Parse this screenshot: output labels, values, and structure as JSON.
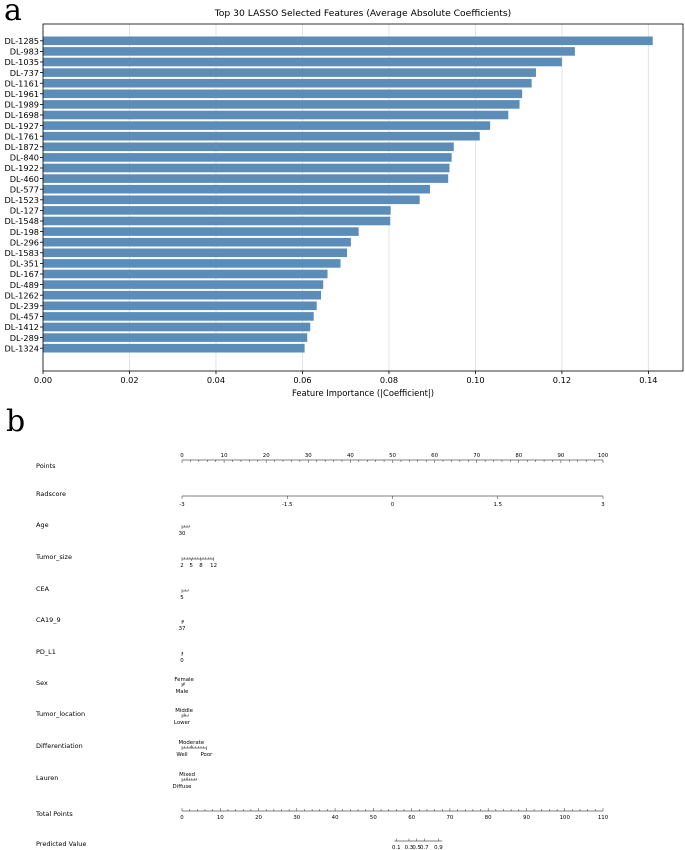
{
  "panel_labels": {
    "a": "a",
    "b": "b"
  },
  "chart_data": [
    {
      "type": "bar",
      "orientation": "horizontal",
      "title": "Top 30 LASSO Selected Features (Average Absolute Coefficients)",
      "xlabel": "Feature Importance (|Coefficient|)",
      "ylabel": "",
      "xlim": [
        0,
        0.148
      ],
      "xticks": [
        0.0,
        0.02,
        0.04,
        0.06,
        0.08,
        0.1,
        0.12,
        0.14
      ],
      "xtick_labels": [
        "0.00",
        "0.02",
        "0.04",
        "0.06",
        "0.08",
        "0.10",
        "0.12",
        "0.14"
      ],
      "grid": "vertical",
      "bar_color": "#5b8db8",
      "categories": [
        "DL-1285",
        "DL-983",
        "DL-1035",
        "DL-737",
        "DL-1161",
        "DL-1961",
        "DL-1989",
        "DL-1698",
        "DL-1927",
        "DL-1761",
        "DL-1872",
        "DL-840",
        "DL-1922",
        "DL-460",
        "DL-577",
        "DL-1523",
        "DL-127",
        "DL-1548",
        "DL-198",
        "DL-296",
        "DL-1583",
        "DL-351",
        "DL-167",
        "DL-489",
        "DL-1262",
        "DL-239",
        "DL-457",
        "DL-1412",
        "DL-289",
        "DL-1324"
      ],
      "values": [
        0.141,
        0.123,
        0.12,
        0.114,
        0.113,
        0.1108,
        0.1102,
        0.1076,
        0.1034,
        0.101,
        0.095,
        0.0945,
        0.094,
        0.0937,
        0.0895,
        0.0871,
        0.0804,
        0.0803,
        0.073,
        0.0712,
        0.0703,
        0.0688,
        0.0658,
        0.0648,
        0.0643,
        0.0633,
        0.0626,
        0.0618,
        0.0611,
        0.0605
      ]
    },
    {
      "type": "nomogram",
      "title": "",
      "rows": [
        {
          "label": "Points",
          "axis": "points",
          "ticks": [
            {
              "v": "0",
              "p": 0
            },
            {
              "v": "10",
              "p": 10
            },
            {
              "v": "20",
              "p": 20
            },
            {
              "v": "30",
              "p": 30
            },
            {
              "v": "40",
              "p": 40
            },
            {
              "v": "50",
              "p": 50
            },
            {
              "v": "60",
              "p": 60
            },
            {
              "v": "70",
              "p": 70
            },
            {
              "v": "80",
              "p": 80
            },
            {
              "v": "90",
              "p": 90
            },
            {
              "v": "100",
              "p": 100
            }
          ]
        },
        {
          "label": "Radscore",
          "ticks": [
            {
              "v": "-3",
              "p": 0
            },
            {
              "v": "-1.5",
              "p": 25
            },
            {
              "v": "0",
              "p": 50
            },
            {
              "v": "1.5",
              "p": 75
            },
            {
              "v": "3",
              "p": 100
            }
          ],
          "labels_side": "above"
        },
        {
          "label": "Age",
          "ticks": [
            {
              "v": "30",
              "p": 0
            }
          ],
          "span": [
            0,
            1.8
          ],
          "labels_side": "below"
        },
        {
          "label": "Tumor_size",
          "ticks": [
            {
              "v": "2",
              "p": 0
            },
            {
              "v": "5",
              "p": 2.2
            },
            {
              "v": "8",
              "p": 4.5
            },
            {
              "v": "12",
              "p": 7.5
            }
          ],
          "labels_side": "below"
        },
        {
          "label": "CEA",
          "ticks": [
            {
              "v": "5",
              "p": 0
            }
          ],
          "span": [
            0,
            1.5
          ],
          "labels_side": "below"
        },
        {
          "label": "CA19_9",
          "ticks": [
            {
              "v": "37",
              "p": 0
            }
          ],
          "span": [
            0,
            0.4
          ],
          "labels_side": "below"
        },
        {
          "label": "PD_L1",
          "ticks": [
            {
              "v": "0",
              "p": 0
            }
          ],
          "span": [
            0,
            0.2
          ],
          "labels_side": "below"
        },
        {
          "label": "Sex",
          "ticks": [
            {
              "v": "Female",
              "p": 0.5,
              "side": "above"
            },
            {
              "v": "Male",
              "p": 0,
              "side": "below"
            }
          ],
          "span": [
            0,
            0.5
          ]
        },
        {
          "label": "Tumor_location",
          "ticks": [
            {
              "v": "Middle",
              "p": 0.5,
              "side": "above"
            },
            {
              "v": "Lower",
              "p": 0,
              "side": "below"
            }
          ],
          "span": [
            0,
            1.5
          ]
        },
        {
          "label": "Differentiation",
          "ticks": [
            {
              "v": "Moderate",
              "p": 2.2,
              "side": "above"
            },
            {
              "v": "Well",
              "p": 0,
              "side": "below"
            },
            {
              "v": "Poor",
              "p": 5.8,
              "side": "below"
            }
          ],
          "span": [
            0,
            5.8
          ]
        },
        {
          "label": "Lauren",
          "ticks": [
            {
              "v": "Mixed",
              "p": 1.2,
              "side": "above"
            },
            {
              "v": "Diffuse",
              "p": 0,
              "side": "below"
            }
          ],
          "span": [
            0,
            3.5
          ]
        },
        {
          "label": "Total Points",
          "axis": "total",
          "ticks": [
            {
              "v": "0",
              "p": 0
            },
            {
              "v": "10",
              "p": 10
            },
            {
              "v": "20",
              "p": 20
            },
            {
              "v": "30",
              "p": 30
            },
            {
              "v": "40",
              "p": 40
            },
            {
              "v": "50",
              "p": 50
            },
            {
              "v": "60",
              "p": 60
            },
            {
              "v": "70",
              "p": 70
            },
            {
              "v": "80",
              "p": 80
            },
            {
              "v": "90",
              "p": 90
            },
            {
              "v": "100",
              "p": 100
            },
            {
              "v": "110",
              "p": 110
            }
          ],
          "max": 110
        },
        {
          "label": "Predicted Value",
          "axis": "total",
          "ticks": [
            {
              "v": "0.1",
              "p": 56
            },
            {
              "v": "0.3",
              "p": 59.3
            },
            {
              "v": "0.5",
              "p": 61.3
            },
            {
              "v": "0.7",
              "p": 63.3
            },
            {
              "v": "0.9",
              "p": 67
            }
          ],
          "max": 110,
          "span_points": [
            55.5,
            68
          ],
          "labels_side": "below"
        }
      ]
    }
  ]
}
